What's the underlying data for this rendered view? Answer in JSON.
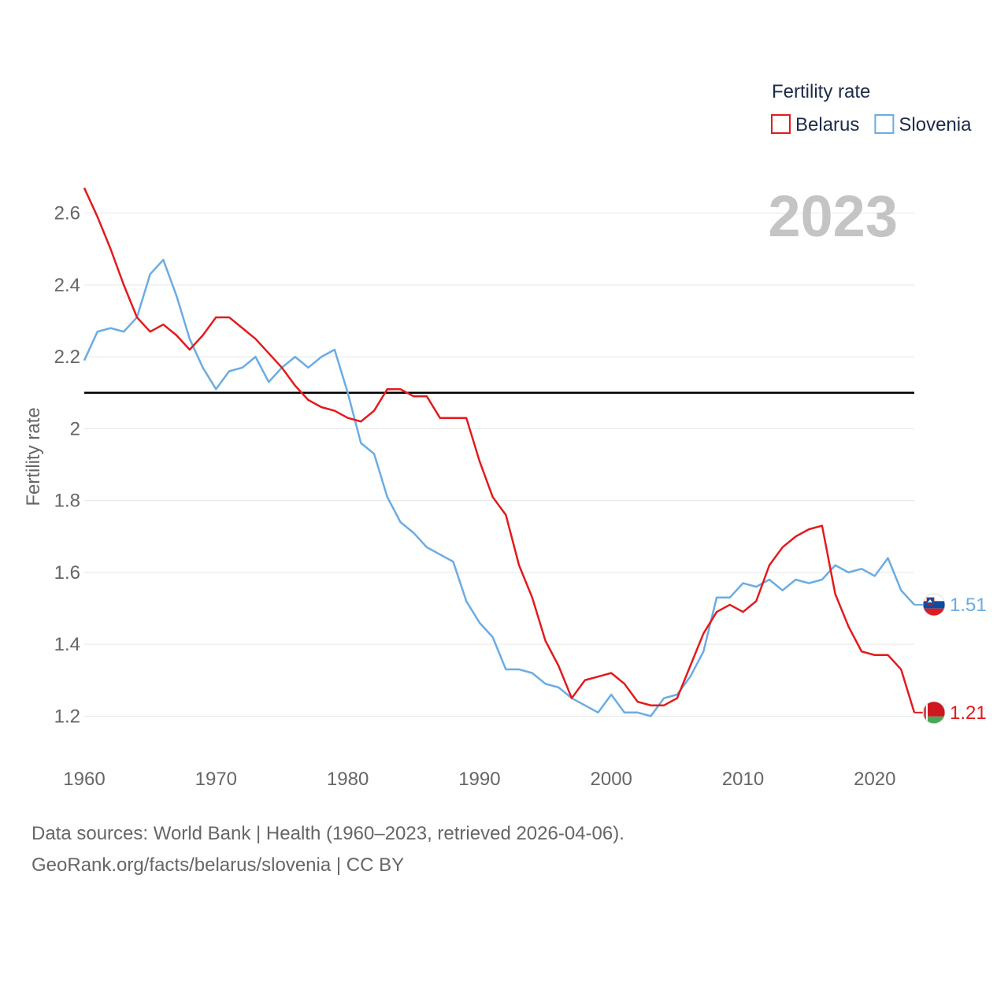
{
  "chart_data": {
    "type": "line",
    "title": "",
    "legend": {
      "title": "Fertility rate",
      "position": "top-right"
    },
    "current_year_label": "2023",
    "xlabel": "",
    "ylabel": "Fertility rate",
    "xlim": [
      1960,
      2023
    ],
    "ylim": [
      1.1,
      2.7
    ],
    "x_ticks": [
      1960,
      1970,
      1980,
      1990,
      2000,
      2010,
      2020
    ],
    "x_tick_labels": [
      "1960",
      "1970",
      "1980",
      "1990",
      "2000",
      "2010",
      "2020"
    ],
    "y_ticks": [
      1.2,
      1.4,
      1.6,
      1.8,
      2.0,
      2.2,
      2.4,
      2.6
    ],
    "y_tick_labels": [
      "1.2",
      "1.4",
      "1.6",
      "1.8",
      "2",
      "2.2",
      "2.4",
      "2.6"
    ],
    "grid": true,
    "reference_line": {
      "y": 2.1,
      "color": "#000000"
    },
    "x": [
      1960,
      1961,
      1962,
      1963,
      1964,
      1965,
      1966,
      1967,
      1968,
      1969,
      1970,
      1971,
      1972,
      1973,
      1974,
      1975,
      1976,
      1977,
      1978,
      1979,
      1980,
      1981,
      1982,
      1983,
      1984,
      1985,
      1986,
      1987,
      1988,
      1989,
      1990,
      1991,
      1992,
      1993,
      1994,
      1995,
      1996,
      1997,
      1998,
      1999,
      2000,
      2001,
      2002,
      2003,
      2004,
      2005,
      2006,
      2007,
      2008,
      2009,
      2010,
      2011,
      2012,
      2013,
      2014,
      2015,
      2016,
      2017,
      2018,
      2019,
      2020,
      2021,
      2022,
      2023
    ],
    "series": [
      {
        "name": "Belarus",
        "color": "#e31a1c",
        "end_label": "1.21",
        "flag": "belarus-flag",
        "values": [
          2.67,
          2.59,
          2.5,
          2.4,
          2.31,
          2.27,
          2.29,
          2.26,
          2.22,
          2.26,
          2.31,
          2.31,
          2.28,
          2.25,
          2.21,
          2.17,
          2.12,
          2.08,
          2.06,
          2.05,
          2.03,
          2.02,
          2.05,
          2.11,
          2.11,
          2.09,
          2.09,
          2.03,
          2.03,
          2.03,
          1.91,
          1.81,
          1.76,
          1.62,
          1.53,
          1.41,
          1.34,
          1.25,
          1.3,
          1.31,
          1.32,
          1.29,
          1.24,
          1.23,
          1.23,
          1.25,
          1.34,
          1.43,
          1.49,
          1.51,
          1.49,
          1.52,
          1.62,
          1.67,
          1.7,
          1.72,
          1.73,
          1.54,
          1.45,
          1.38,
          1.37,
          1.37,
          1.33,
          1.21
        ]
      },
      {
        "name": "Slovenia",
        "color": "#6aace4",
        "end_label": "1.51",
        "flag": "slovenia-flag",
        "values": [
          2.19,
          2.27,
          2.28,
          2.27,
          2.31,
          2.43,
          2.47,
          2.37,
          2.25,
          2.17,
          2.11,
          2.16,
          2.17,
          2.2,
          2.13,
          2.17,
          2.2,
          2.17,
          2.2,
          2.22,
          2.1,
          1.96,
          1.93,
          1.81,
          1.74,
          1.71,
          1.67,
          1.65,
          1.63,
          1.52,
          1.46,
          1.42,
          1.33,
          1.33,
          1.32,
          1.29,
          1.28,
          1.25,
          1.23,
          1.21,
          1.26,
          1.21,
          1.21,
          1.2,
          1.25,
          1.26,
          1.31,
          1.38,
          1.53,
          1.53,
          1.57,
          1.56,
          1.58,
          1.55,
          1.58,
          1.57,
          1.58,
          1.62,
          1.6,
          1.61,
          1.59,
          1.64,
          1.55,
          1.51
        ]
      }
    ]
  },
  "footer": {
    "sources": "Data sources: World Bank | Health (1960–2023, retrieved 2026-04-06).",
    "url": "GeoRank.org/facts/belarus/slovenia | CC BY"
  }
}
